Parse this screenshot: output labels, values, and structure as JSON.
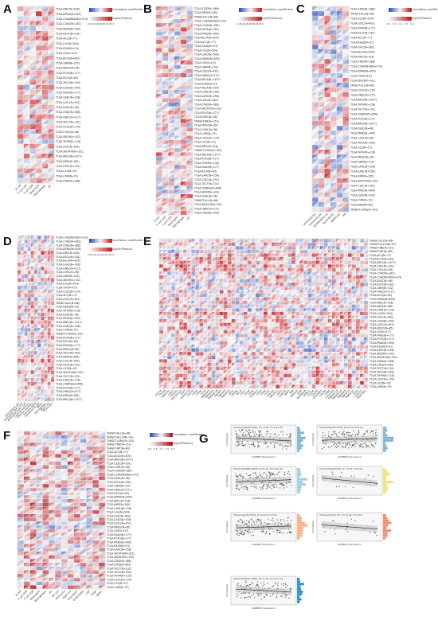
{
  "figure": {
    "panels": [
      {
        "label": "A",
        "legend_titles": [
          "Correlation coefficient",
          "-log10(Pvalue)"
        ],
        "legend_ticks": [
          "0.0",
          "0.2",
          "0.4",
          "0.6",
          "0.8",
          "1.0",
          "1.5",
          "2.0"
        ],
        "row_labels": [
          "TCGA-KIRC(N=528)",
          "TCGA-KIPAN(N=878)",
          "TCGA-COADREAD(N=373)",
          "TCGA-COAD(N=282)",
          "TCGA-PRAD(N=490)",
          "TCGA-ESCA(N=181)",
          "TCGA-ACC(N=77)",
          "TCGA-LGG(N=504)",
          "TCGA-READ(N=91)",
          "TCGA-OV(N=417)",
          "TCGA-BLCA(N=405)",
          "TCGA-GBM(N=152)",
          "TCGA-MESO(N=85)",
          "TCGA-PCPG(N=177)",
          "TCGA-KICH(N=65)",
          "TCGA-THCA(N=504)",
          "TCGA-LUAD(N=500)",
          "TCGA-PAAD(N=177)",
          "TCGA-SARC(N=258)",
          "TCGA-LUSC(N=491)",
          "TCGA-DLBC(N=46)",
          "TCGA-STAD(N=388)",
          "TCGA-HNSC(N=517)",
          "TCGA-TGCT(N=132)",
          "TCGA-UCEC(N=179)",
          "TCGA-CHOL(N=36)",
          "TCGA-SKCM(N=102)",
          "TCGA-THYM(N=118)",
          "TCGA-LIHC(N=363)",
          "TCGA-SKCM-M(N=351)",
          "TCGA-BRCA(N=1077)",
          "TCGA-KIRP(N=285)",
          "TCGA-CESC(N=291)",
          "TCGA-UCS(N=57)",
          "TCGA-UVM(N=79)",
          "TCGA-STAD(N=388)"
        ],
        "col_labels": [
          "B cell",
          "T cell CD4",
          "T cell CD8",
          "Neutrophil",
          "Macrophage",
          "DC"
        ]
      },
      {
        "label": "B",
        "legend_titles": [
          "Correlation coefficient",
          "-log10(Pvalue)"
        ],
        "legend_ticks": [
          "0.0",
          "0.2",
          "0.4",
          "0.6",
          "0.8",
          "1.0",
          "1.5",
          "2.0"
        ],
        "row_labels": [
          "TCGA-STAD(N=388)",
          "TCGA-KIRP(N=285)",
          "TARGET-ALL(N=86)",
          "TCGA-COADREAD(N=373)",
          "TCGA-COAD(N=282)",
          "TCGA-ESCA(N=181)",
          "TCGA-PRAD(N=490)",
          "TCGA-BLCA(N=405)",
          "TCGA-ACC(N=77)",
          "TCGA-READ(N=91)",
          "TCGA-LGG(N=504)",
          "TCGA-LUAD(N=500)",
          "TCGA-KIPAN(N=878)",
          "TCGA-OV(N=417)",
          "TCGA-GBM(N=152)",
          "TCGA-LUSC(N=491)",
          "TCGA-HNSC(N=517)",
          "TCGA-BRCA(N=1077)",
          "TCGA-READ(N=91)",
          "TCGA-THCA(N=504)",
          "TCGA-LAML(N=126)",
          "TCGA-SARC(N=258)",
          "TCGA-LIHC(N=363)",
          "TCGA-STAD(N=388)",
          "TCGA-SKCM-P(N=102)",
          "TCGA-PCPG(N=177)",
          "TCGA-DLBC(N=46)",
          "TARGET-NB(N=153)",
          "TCGA-MESO(N=85)",
          "TCGA-CHOL(N=36)",
          "TCGA-UVM(N=79)",
          "TCGA-UCEC(N=179)",
          "TCGA-UCS(N=57)",
          "TCGA-KIRC(N=528)",
          "TARGET-LAML(N=142)",
          "TCGA-BRCA(N=1077)",
          "TCGA-PCPG(N=177)",
          "TCGA-THYM(N=118)",
          "TCGA-PAAD(N=177)",
          "TCGA-KICH(N=65)",
          "TCGA-SARC(N=258)",
          "TCGA-CESC(N=291)",
          "TCGA-TGCT(N=132)",
          "TCGA-OSBMG(N=698)",
          "TCGA-SKCM(N=102)",
          "TCGA-DLBC(N=46)",
          "TARGET-ALL(N=86)",
          "TCGA-SKCM-M(N=351)",
          "TCGA-HNSC(N=517)",
          "TCGA-LUAD(N=500)"
        ],
        "col_labels": [
          "B cell",
          "T cell CD4",
          "T cell CD8",
          "Neutrophil",
          "Macrophage",
          "DC"
        ]
      },
      {
        "label": "C",
        "legend_titles": [
          "Correlation coefficient",
          "-log10(Pvalue)"
        ],
        "legend_ticks": [
          "0.0",
          "0.5",
          "1.0",
          "1.5",
          "2.0"
        ],
        "row_labels": [
          "TCGA-STAD(N=388)",
          "TARGET-ALL(N=86)",
          "TCGA-LGG(N=504)",
          "TCGA-LUSC(N=491)",
          "TCGA-PAAD(N=177)",
          "TCGA-ESCA(N=181)",
          "TCGA-ACC(N=77)",
          "TCGA-READ(N=91)",
          "TCGA-LIHC(N=363)",
          "TCGA-BLCA(N=405)",
          "TCGA-KIRC(N=528)",
          "TCGA-STAD(N=388)",
          "TCGA-COADREAD(N=373)",
          "TCGA-KIPAN(N=878)",
          "TCGA-OV(N=417)",
          "TCGA-SKCM(N=102)",
          "TARGET-ALL(N=86)",
          "TCGA-UCEC(N=179)",
          "TCGA-HNSC(N=517)",
          "TCGA-BRCA(N=1077)",
          "TCGA-THYM(N=118)",
          "TCGA-TGCT(N=132)",
          "TCGA-OSBMG(N=698)",
          "TCGA-PCPG(N=177)",
          "TCGA-BRCA(N=1077)",
          "TCGA-DLBC(N=46)",
          "TCGA-PRAD(N=490)",
          "TCGA-CHOL(N=36)",
          "TCGA-THCA(N=504)",
          "TCGA-UCS(N=57)",
          "TCGA-THYM(N=118)",
          "TCGA-MESO(N=85)",
          "TCGA-GBM(N=152)",
          "TCGA-LAML(N=126)",
          "TCGA-SARC(N=258)",
          "TCGA-KIRP(N=285)",
          "TCGA-SKCM-M(N=351)",
          "TCGA-CESC(N=291)",
          "TCGA-PRAD(N=490)",
          "TCGA-LUAD(N=500)",
          "TCGA-UVM(N=79)",
          "TCGA-KIRN(N=65)",
          "TARGET-LAML(N=142)"
        ],
        "col_labels": [
          "StromalScore",
          "ImmuneScore",
          "ESTIMATEScore",
          "TumorPurity",
          "DMPscore",
          "IPS"
        ]
      },
      {
        "label": "D",
        "legend_titles": [
          "Correlation coefficient",
          "-log10(Pvalue)"
        ],
        "legend_ticks": [
          "0.0",
          "0.2",
          "0.4",
          "0.6",
          "1.0",
          "1.5",
          "2.0"
        ],
        "row_labels": [
          "TCGA-COADREAD(N=373)",
          "TCGA-COAD(N=282)",
          "TCGA-STAD(N=388)",
          "TCGA-KIPAN(N=878)",
          "TCGA-KIRC(N=528)",
          "TCGA-ESCA(N=181)",
          "TCGA-BLCA(N=405)",
          "TCGA-LUAD(N=500)",
          "TCGA-HNSC(N=517)",
          "TCGA-CHOL(N=36)",
          "TCGA-GBM(N=152)",
          "TCGA-SKCM(N=102)",
          "TCGA-LGG(N=504)",
          "TCGA-OV(N=417)",
          "TCGA-UCEC(N=179)",
          "TCGA-ACC(N=77)",
          "TCGA-LUSC(N=491)",
          "TARGET-ALL(N=86)",
          "TCGA-READ(N=91)",
          "TCGA-THYM(N=118)",
          "TCGA-DLBC(N=46)",
          "TCGA-PRAD(N=490)",
          "TCGA-BRCA(N=1077)",
          "TCGA-SARC(N=258)",
          "TCGA-UVM(N=79)",
          "TARGET-LAML(N=142)",
          "TCGA-PCPG(N=177)",
          "TCGA-KICH(N=65)",
          "TCGA-PAAD(N=177)",
          "TCGA-MESO(N=85)",
          "TCGA-THCA(N=504)",
          "TCGA-KIRP(N=285)",
          "TCGA-LIHC(N=363)",
          "TCGA-CESC(N=291)",
          "TCGA-UCS(N=57)",
          "TCGA-SKCM-M(N=351)",
          "TCGA-TGCT(N=132)",
          "TCGA-LAML(N=126)",
          "TCGA-OSBMG(N=698)",
          "TCGA-PCPG(N=177)",
          "TCGA-HNSC(N=517)",
          "TCGA-KIRP(N=285)",
          "TCGA-BRCA(N=1077)"
        ],
        "col_labels": [
          "Activated B cell",
          "Activated CD4 T cell",
          "Activated CD8 T cell",
          "Central memory",
          "Effector memory",
          "Gamma delta",
          "Immature B cell",
          "MDSC",
          "Macrophage",
          "Mast cell",
          "Monocyte"
        ]
      },
      {
        "label": "E",
        "legend_titles": [],
        "legend_ticks": [],
        "row_labels": [
          "TARGET-ALL(N=86)",
          "TARGET-ALL-R(N=99)",
          "TARGET-NB(N=153)",
          "TARGET-WT(N=80)",
          "TCGA-ACC(N=77)",
          "TCGA-BLCA(N=405)",
          "TCGA-BRCA(N=1077)",
          "TCGA-CESC(N=291)",
          "TCGA-CHOL(N=36)",
          "TCGA-COAD(N=282)",
          "TCGA-COADREAD(N=373)",
          "TCGA-DLBC(N=46)",
          "TCGA-ESCA(N=181)",
          "TCGA-GBM(N=152)",
          "TCGA-HNSC(N=517)",
          "TCGA-KICH(N=65)",
          "TCGA-KIPAN(N=878)",
          "TCGA-KIRC(N=528)",
          "TCGA-KIRP(N=285)",
          "TCGA-LAML(N=126)",
          "TCGA-LGG(N=504)",
          "TCGA-LIHC(N=363)",
          "TCGA-LUAD(N=500)",
          "TCGA-LUSC(N=491)",
          "TCGA-MESO(N=85)",
          "TCGA-OV(N=417)",
          "TCGA-PAAD(N=177)",
          "TCGA-PCPG(N=177)",
          "TCGA-PRAD(N=490)",
          "TCGA-READ(N=91)",
          "TCGA-SARC(N=258)",
          "TCGA-SKCM(N=102)",
          "TCGA-SKCM-M(N=351)",
          "TCGA-STAD(N=388)",
          "TCGA-STES(N=569)",
          "TCGA-TGCT(N=132)",
          "TCGA-THCA(N=504)",
          "TCGA-THYM(N=118)",
          "TCGA-UCEC(N=179)",
          "TCGA-UCS(N=57)",
          "TCGA-UVM(N=79)"
        ],
        "col_labels": [
          "CD274",
          "CTLA4",
          "HAVCR2",
          "LAG3",
          "PDCD1",
          "PDCD1LG2",
          "TIGIT",
          "SIGLEC15",
          "CD276",
          "CD80",
          "CD86",
          "ICOS",
          "TNFRSF4",
          "TNFRSF9",
          "TNFRSF18",
          "TNFSF4",
          "TNFSF9",
          "TNFSF18",
          "IDO1",
          "VTCN1",
          "BTLA",
          "CD27",
          "CD28",
          "CD40",
          "CD40LG",
          "CD44",
          "CD48",
          "CD70",
          "HHLA2",
          "KIR3DL1",
          "LAIR1",
          "LGALS9",
          "NRP1",
          "PVR",
          "TMIGD2",
          "VSIR",
          "ADORA2A",
          "BTNL2",
          "CD160",
          "CD200",
          "CD200R1",
          "CD244",
          "CD80",
          "C10orf54",
          "TNFRSF14",
          "TNFRSF25",
          "TNFRSF8",
          "TNFSF14",
          "TNFSF15",
          "IDO2",
          "LGALS3",
          "CEACAM1"
        ]
      },
      {
        "label": "F",
        "legend_titles": [
          "Correlation coefficient",
          "-log10(Pvalue)"
        ],
        "legend_ticks": [
          "0.0",
          "0.5",
          "1.0",
          "1.5",
          "2.0"
        ],
        "row_labels": [
          "TARGET-ALL(N=86)",
          "TARGET-ALL-R(N=99)",
          "TARGET-LAML(N=142)",
          "TARGET-NB(N=153)",
          "TARGET-WT(N=80)",
          "TCGA-ACC(N=77)",
          "TCGA-BLCA(N=405)",
          "TCGA-BRCA(N=1077)",
          "TCGA-CESC(N=291)",
          "TCGA-CHOL(N=36)",
          "TCGA-COAD(N=282)",
          "TCGA-COADREAD(N=373)",
          "TCGA-DLBC(N=46)",
          "TCGA-ESCA(N=181)",
          "TCGA-GBM(N=152)",
          "TCGA-HNSC(N=517)",
          "TCGA-KICH(N=65)",
          "TCGA-KIPAN(N=878)",
          "TCGA-KIRC(N=528)",
          "TCGA-KIRP(N=285)",
          "TCGA-LAML(N=126)",
          "TCGA-LGG(N=504)",
          "TCGA-LIHC(N=363)",
          "TCGA-LUAD(N=500)",
          "TCGA-LUSC(N=491)",
          "TCGA-MESO(N=85)",
          "TCGA-OV(N=417)",
          "TCGA-PAAD(N=177)",
          "TCGA-PCPG(N=177)",
          "TCGA-PRAD(N=490)",
          "TCGA-READ(N=91)",
          "TCGA-SARC(N=258)",
          "TCGA-SKCM-M(N=351)",
          "TCGA-SKCM-P(N=102)",
          "TCGA-STAD(N=388)",
          "TCGA-STES(N=569)",
          "TCGA-TGCT(N=132)",
          "TCGA-THCA(N=504)",
          "TCGA-THYM(N=118)",
          "TCGA-UCEC(N=179)",
          "TCGA-UCS(N=57)",
          "TCGA-UVM(N=79)"
        ],
        "col_labels": [
          "B cell",
          "T cell CD4",
          "T cell CD8",
          "Neutrophil",
          "Macrophage",
          "DC",
          "NK cell",
          "Monocyte",
          "Mast cell",
          "Eosinophil",
          "Endothelial",
          "CAF",
          "Tregs",
          "MDSC"
        ]
      },
      {
        "label": "G",
        "scatter_titles": [
          "TCGA-LUAD(N=500), R=-0.19, P=3.4e-05",
          "TCGA-KIRC(N=528), R=0.11, P=0.01",
          "TCGA-KIPAN(N=878), R=0.12, P=2.5e-04",
          "TCGA-KICH(N=65), R=-0.31, P=0.01",
          "TCGA-LGG(N=504), R=0.10, P=0.02",
          "TCGA-ACC(N=77), R=-0.24, P=0.03",
          "TCGA-STAD(N=388), R=-0.18, P=4.5e-04"
        ],
        "y_label": "Correlation",
        "x_label": "RANBP2 Expression"
      }
    ]
  },
  "chart_data": [
    {
      "type": "heatmap",
      "panel": "A",
      "rows": 36,
      "cols": 6,
      "value_range": [
        -0.4,
        0.4
      ],
      "colors": {
        "negative": "#2b4fb7",
        "neutral": "#f6f6f6",
        "positive": "#c4161c"
      }
    },
    {
      "type": "heatmap",
      "panel": "B",
      "rows": 50,
      "cols": 6,
      "value_range": [
        -0.4,
        0.4
      ],
      "colors": {
        "negative": "#2b4fb7",
        "neutral": "#f6f6f6",
        "positive": "#c4161c"
      }
    },
    {
      "type": "heatmap",
      "panel": "C",
      "rows": 43,
      "cols": 6,
      "value_range": [
        -0.4,
        0.4
      ],
      "colors": {
        "negative": "#2b4fb7",
        "neutral": "#f6f6f6",
        "positive": "#c4161c"
      }
    },
    {
      "type": "heatmap",
      "panel": "D",
      "rows": 43,
      "cols": 11,
      "value_range": [
        -0.4,
        0.4
      ],
      "colors": {
        "negative": "#2b4fb7",
        "neutral": "#f6f6f6",
        "positive": "#c4161c"
      }
    },
    {
      "type": "heatmap",
      "panel": "E",
      "rows": 41,
      "cols": 52,
      "value_range": [
        -0.4,
        0.6
      ],
      "colors": {
        "negative": "#2b4fb7",
        "neutral": "#f6f6f6",
        "positive": "#c4161c"
      }
    },
    {
      "type": "heatmap",
      "panel": "F",
      "rows": 42,
      "cols": 14,
      "value_range": [
        -0.4,
        0.8
      ],
      "colors": {
        "negative": "#2b4fb7",
        "neutral": "#f6f6f6",
        "positive": "#b0101a"
      }
    },
    {
      "type": "scatter",
      "panel": "G",
      "subplots": [
        {
          "name": "TCGA-LUAD(N=500)",
          "r": -0.19,
          "n": 500,
          "color": "#7fb3d5"
        },
        {
          "name": "TCGA-KIRC(N=528)",
          "r": 0.11,
          "n": 528,
          "color": "#7fb3d5"
        },
        {
          "name": "TCGA-KIPAN(N=878)",
          "r": 0.12,
          "n": 878,
          "color": "#9ccfe0"
        },
        {
          "name": "TCGA-KICH(N=65)",
          "r": -0.31,
          "n": 65,
          "color": "#f3e26b"
        },
        {
          "name": "TCGA-LGG(N=504)",
          "r": 0.1,
          "n": 504,
          "color": "#f4b183"
        },
        {
          "name": "TCGA-ACC(N=77)",
          "r": -0.24,
          "n": 77,
          "color": "#f08a6c"
        },
        {
          "name": "TCGA-STAD(N=388)",
          "r": -0.18,
          "n": 388,
          "color": "#1f8fcf"
        }
      ]
    }
  ]
}
